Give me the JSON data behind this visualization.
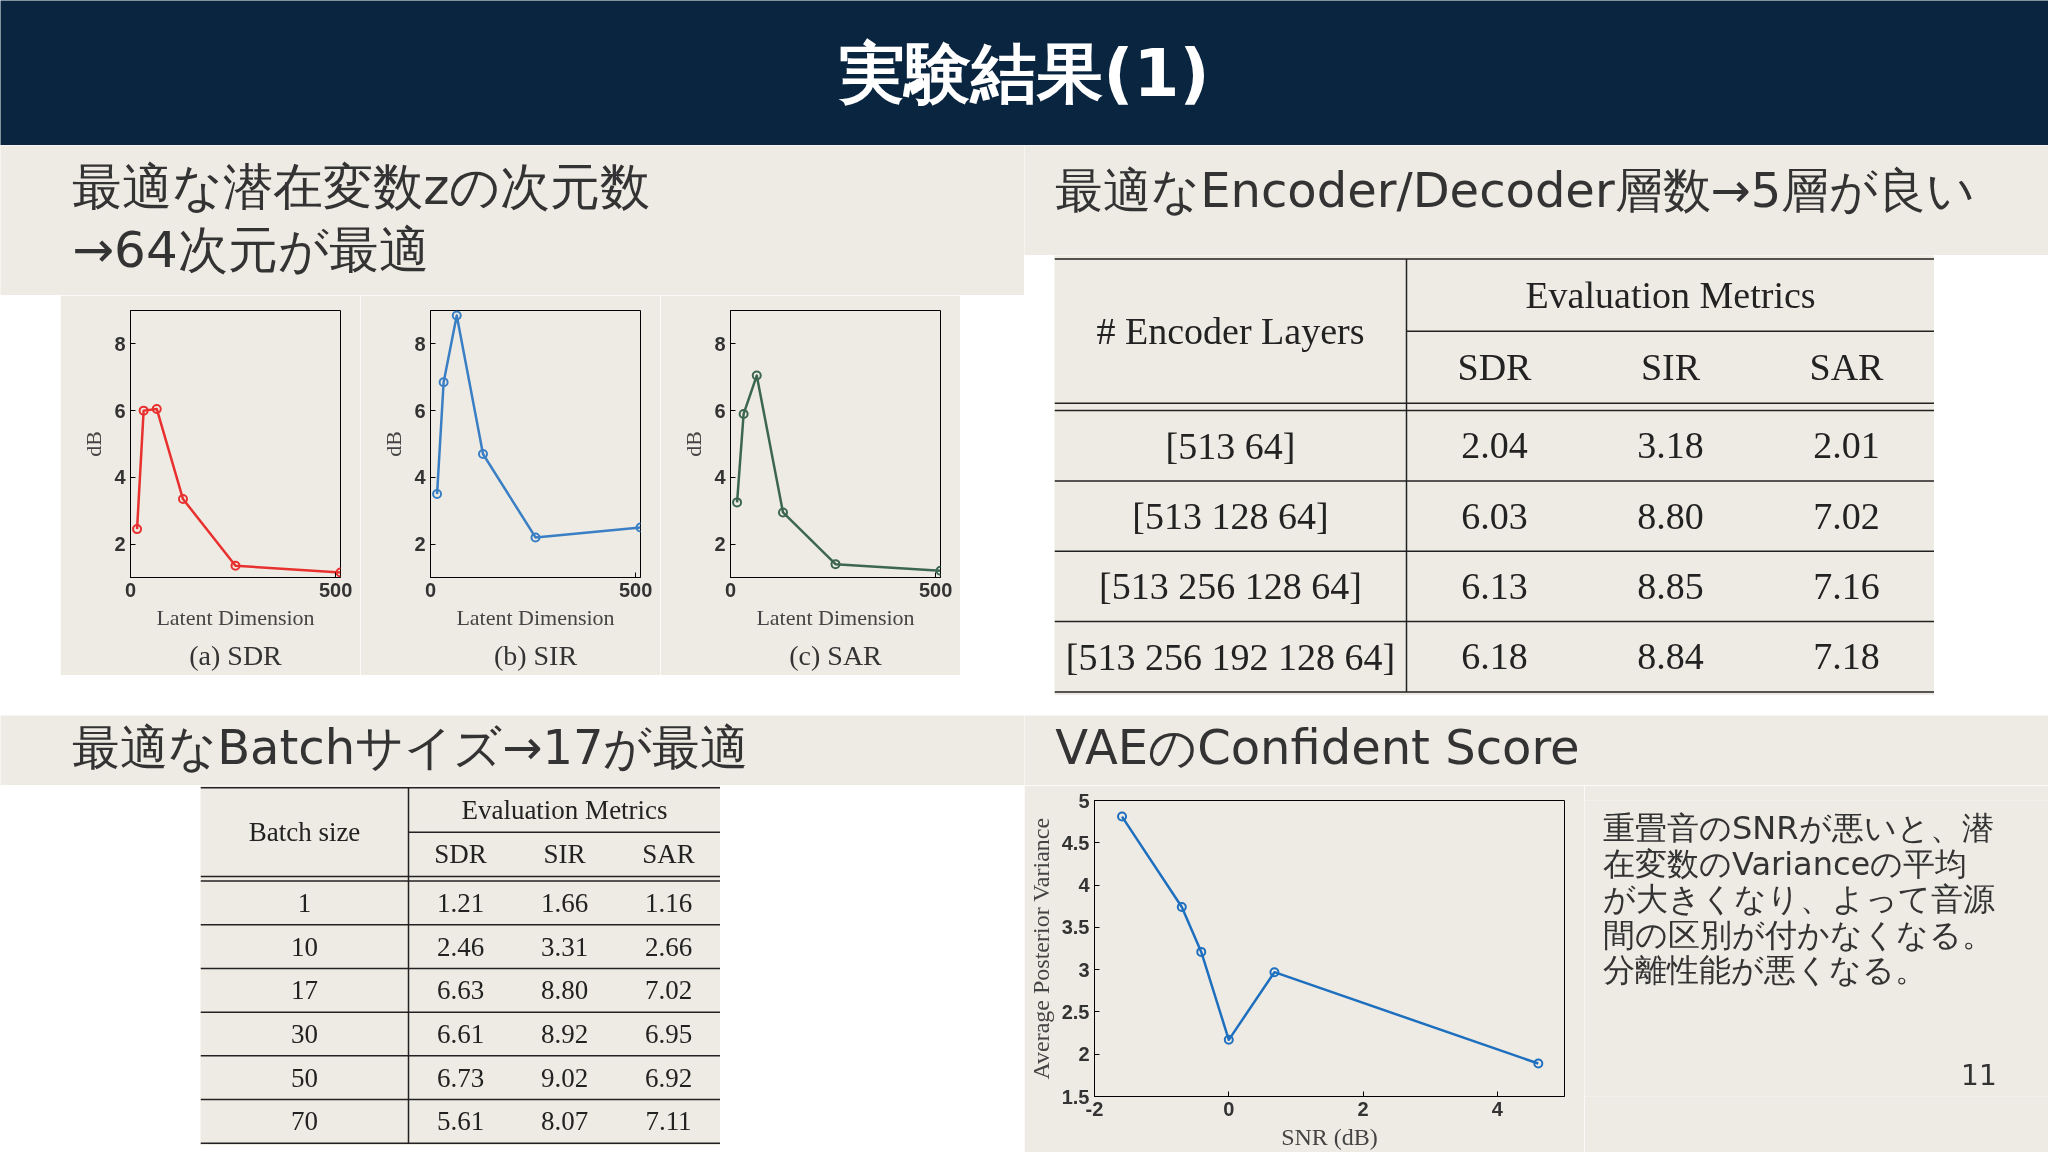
{
  "chart_data": [
    {
      "type": "other",
      "title": "実験結果(1)",
      "annotations": [
        "最適な潜在変数zの次元数\n→64次元が最適",
        "最適なEncoder/Decoder層数→5層が良い",
        "最適なBatchサイズ→17が最適",
        "VAEのConfident Score",
        "11"
      ]
    },
    {
      "type": "line",
      "title": "(a) SDR",
      "x": [
        16,
        32,
        64,
        128,
        256,
        512
      ],
      "values": [
        2.45,
        6.0,
        6.05,
        3.35,
        1.35,
        1.15
      ],
      "color": "#e8312f",
      "xlim": [
        0,
        512
      ],
      "ylim": [
        1,
        9
      ],
      "xticks": [
        0,
        500
      ],
      "yticks": [
        2,
        4,
        6,
        8
      ],
      "xlabel": "Latent Dimension",
      "ylabel": "dB",
      "marker": "circle"
    },
    {
      "type": "line",
      "title": "(b) SIR",
      "x": [
        16,
        32,
        64,
        128,
        256,
        512
      ],
      "values": [
        3.5,
        6.85,
        8.85,
        4.7,
        2.2,
        2.5
      ],
      "color": "#3a7fc4",
      "xlim": [
        0,
        512
      ],
      "ylim": [
        1,
        9
      ],
      "xticks": [
        0,
        500
      ],
      "yticks": [
        2,
        4,
        6,
        8
      ],
      "xlabel": "Latent Dimension",
      "ylabel": "dB",
      "marker": "circle"
    },
    {
      "type": "line",
      "title": "(c) SAR",
      "x": [
        16,
        32,
        64,
        128,
        256,
        512
      ],
      "values": [
        3.25,
        5.9,
        7.05,
        2.95,
        1.4,
        1.2
      ],
      "color": "#3c6650",
      "xlim": [
        0,
        512
      ],
      "ylim": [
        1,
        9
      ],
      "xticks": [
        0,
        500
      ],
      "yticks": [
        2,
        4,
        6,
        8
      ],
      "xlabel": "Latent Dimension",
      "ylabel": "dB",
      "marker": "circle"
    },
    {
      "type": "heatmap",
      "title": "Evaluation Metrics",
      "ylabel": "# Encoder Layers",
      "categories": [
        "SDR",
        "SIR",
        "SAR"
      ],
      "y_categories": [
        "[513 64]",
        "[513 128 64]",
        "[513 256 128 64]",
        "[513 256 192 128 64]"
      ],
      "cells": [
        [
          2.04,
          3.18,
          2.01
        ],
        [
          6.03,
          8.8,
          7.02
        ],
        [
          6.13,
          8.85,
          7.16
        ],
        [
          6.18,
          8.84,
          7.18
        ]
      ],
      "cell_labels": [
        [
          "2.04",
          "3.18",
          "2.01"
        ],
        [
          "6.03",
          "8.80",
          "7.02"
        ],
        [
          "6.13",
          "8.85",
          "7.16"
        ],
        [
          "6.18",
          "8.84",
          "7.18"
        ]
      ],
      "data_labels": true
    },
    {
      "type": "heatmap",
      "title": "Evaluation Metrics",
      "ylabel": "Batch size",
      "categories": [
        "SDR",
        "SIR",
        "SAR"
      ],
      "y_categories": [
        "1",
        "10",
        "17",
        "30",
        "50",
        "70"
      ],
      "cells": [
        [
          1.21,
          1.66,
          1.16
        ],
        [
          2.46,
          3.31,
          2.66
        ],
        [
          6.63,
          8.8,
          7.02
        ],
        [
          6.61,
          8.92,
          6.95
        ],
        [
          6.73,
          9.02,
          6.92
        ],
        [
          5.61,
          8.07,
          7.11
        ]
      ],
      "cell_labels": [
        [
          "1.21",
          "1.66",
          "1.16"
        ],
        [
          "2.46",
          "3.31",
          "2.66"
        ],
        [
          "6.63",
          "8.80",
          "7.02"
        ],
        [
          "6.61",
          "8.92",
          "6.95"
        ],
        [
          "6.73",
          "9.02",
          "6.92"
        ],
        [
          "5.61",
          "8.07",
          "7.11"
        ]
      ],
      "data_labels": true
    },
    {
      "type": "line",
      "x": [
        -1.59,
        -0.7,
        -0.41,
        0,
        0.68,
        4.61
      ],
      "values": [
        4.81,
        3.74,
        3.21,
        2.17,
        2.97,
        1.89
      ],
      "color": "#1f6fbf",
      "xlim": [
        -2,
        5
      ],
      "ylim": [
        1.5,
        5
      ],
      "xticks": [
        -2,
        0,
        2,
        4
      ],
      "yticks": [
        1.5,
        2,
        2.5,
        3,
        3.5,
        4,
        4.5,
        5
      ],
      "xlabel": "SNR (dB)",
      "ylabel": "Average Posterior Variance",
      "marker": "circle",
      "annotations": [
        "重畳音のSNRが悪いと、潜在変数のVarianceの平均が大きくなり、よって音源間の区別が付かなくなる。分離性能が悪くなる。"
      ]
    }
  ]
}
